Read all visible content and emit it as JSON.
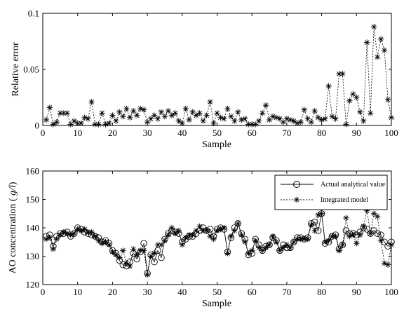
{
  "chart_data": [
    {
      "type": "line",
      "xlabel": "Sample",
      "ylabel": "Relative error",
      "xlim": [
        0,
        100
      ],
      "ylim": [
        0,
        0.1
      ],
      "xticks": [
        0,
        10,
        20,
        30,
        40,
        50,
        60,
        70,
        80,
        90,
        100
      ],
      "yticks": [
        0,
        0.05,
        0.1
      ],
      "ytick_labels": [
        "0",
        "0.05",
        "0.1"
      ],
      "grid": false,
      "series": [
        {
          "name": "",
          "marker": "star",
          "style": "dotted",
          "color": "#000000",
          "x": [
            1,
            2,
            3,
            4,
            5,
            6,
            7,
            8,
            9,
            10,
            11,
            12,
            13,
            14,
            15,
            16,
            17,
            18,
            19,
            20,
            21,
            22,
            23,
            24,
            25,
            26,
            27,
            28,
            29,
            30,
            31,
            32,
            33,
            34,
            35,
            36,
            37,
            38,
            39,
            40,
            41,
            42,
            43,
            44,
            45,
            46,
            47,
            48,
            49,
            50,
            51,
            52,
            53,
            54,
            55,
            56,
            57,
            58,
            59,
            60,
            61,
            62,
            63,
            64,
            65,
            66,
            67,
            68,
            69,
            70,
            71,
            72,
            73,
            74,
            75,
            76,
            77,
            78,
            79,
            80,
            81,
            82,
            83,
            84,
            85,
            86,
            87,
            88,
            89,
            90,
            91,
            92,
            93,
            94,
            95,
            96,
            97,
            98,
            99,
            100
          ],
          "y": [
            0.005,
            0.016,
            0.001,
            0.003,
            0.011,
            0.011,
            0.011,
            0.001,
            0.004,
            0.002,
            0.002,
            0.007,
            0.006,
            0.021,
            0.001,
            0.001,
            0.011,
            0.001,
            0.002,
            0.009,
            0.004,
            0.012,
            0.008,
            0.015,
            0.007,
            0.013,
            0.009,
            0.015,
            0.014,
            0.003,
            0.006,
            0.009,
            0.006,
            0.012,
            0.008,
            0.013,
            0.009,
            0.011,
            0.004,
            0.002,
            0.015,
            0.005,
            0.012,
            0.009,
            0.011,
            0.004,
            0.009,
            0.021,
            0.002,
            0.011,
            0.007,
            0.006,
            0.015,
            0.008,
            0.004,
            0.012,
            0.005,
            0.006,
            0.001,
            0.001,
            0.001,
            0.004,
            0.011,
            0.018,
            0.005,
            0.008,
            0.007,
            0.006,
            0.003,
            0.006,
            0.005,
            0.004,
            0.002,
            0.003,
            0.014,
            0.006,
            0.003,
            0.013,
            0.007,
            0.005,
            0.006,
            0.035,
            0.008,
            0.006,
            0.046,
            0.046,
            0.001,
            0.022,
            0.028,
            0.025,
            0.012,
            0.004,
            0.074,
            0.011,
            0.088,
            0.061,
            0.077,
            0.067,
            0.023,
            0.007
          ]
        }
      ]
    },
    {
      "type": "line",
      "xlabel": "Sample",
      "ylabel": "AO concentration (g/l)",
      "xlim": [
        0,
        100
      ],
      "ylim": [
        120,
        160
      ],
      "xticks": [
        0,
        10,
        20,
        30,
        40,
        50,
        60,
        70,
        80,
        90,
        100
      ],
      "yticks": [
        120,
        130,
        140,
        150,
        160
      ],
      "grid": false,
      "legend_position": "top-right",
      "series": [
        {
          "name": "Actual analytical value",
          "marker": "circle",
          "style": "solid",
          "color": "#000000",
          "x": [
            1,
            2,
            3,
            4,
            5,
            6,
            7,
            8,
            9,
            10,
            11,
            12,
            13,
            14,
            15,
            16,
            17,
            18,
            19,
            20,
            21,
            22,
            23,
            24,
            25,
            26,
            27,
            28,
            29,
            30,
            31,
            32,
            33,
            34,
            35,
            36,
            37,
            38,
            39,
            40,
            41,
            42,
            43,
            44,
            45,
            46,
            47,
            48,
            49,
            50,
            51,
            52,
            53,
            54,
            55,
            56,
            57,
            58,
            59,
            60,
            61,
            62,
            63,
            64,
            65,
            66,
            67,
            68,
            69,
            70,
            71,
            72,
            73,
            74,
            75,
            76,
            77,
            78,
            79,
            80,
            81,
            82,
            83,
            84,
            85,
            86,
            87,
            88,
            89,
            90,
            91,
            92,
            93,
            94,
            95,
            96,
            97,
            98,
            99,
            100
          ],
          "y": [
            137,
            137.5,
            133.5,
            137,
            138,
            138,
            138.5,
            137,
            138,
            140,
            139.5,
            138.5,
            138,
            137.5,
            137,
            136.5,
            135,
            135.5,
            134.5,
            132,
            131,
            128.5,
            127,
            126.5,
            128,
            131,
            129,
            131.5,
            134.5,
            124,
            130.5,
            128,
            132,
            129.5,
            136,
            138,
            139,
            138.5,
            138,
            135,
            136,
            137,
            137,
            138,
            139,
            140,
            139,
            139.5,
            137,
            139.5,
            140,
            139.5,
            131.5,
            136.5,
            140,
            141.5,
            138,
            136,
            130.5,
            131,
            136,
            134,
            132,
            133.5,
            134,
            136.5,
            135.5,
            132,
            134,
            133,
            133,
            135,
            136.5,
            136.5,
            136,
            136.5,
            141.5,
            142,
            139,
            145,
            134.5,
            135,
            137,
            137.5,
            132.5,
            134,
            139,
            138,
            138,
            137.5,
            138.5,
            140,
            139.5,
            138,
            139,
            138,
            137.5,
            135,
            133.5,
            135
          ]
        },
        {
          "name": "Integrated model",
          "marker": "star",
          "style": "dotted",
          "color": "#000000",
          "x": [
            1,
            2,
            3,
            4,
            5,
            6,
            7,
            8,
            9,
            10,
            11,
            12,
            13,
            14,
            15,
            16,
            17,
            18,
            19,
            20,
            21,
            22,
            23,
            24,
            25,
            26,
            27,
            28,
            29,
            30,
            31,
            32,
            33,
            34,
            35,
            36,
            37,
            38,
            39,
            40,
            41,
            42,
            43,
            44,
            45,
            46,
            47,
            48,
            49,
            50,
            51,
            52,
            53,
            54,
            55,
            56,
            57,
            58,
            59,
            60,
            61,
            62,
            63,
            64,
            65,
            66,
            67,
            68,
            69,
            70,
            71,
            72,
            73,
            74,
            75,
            76,
            77,
            78,
            79,
            80,
            81,
            82,
            83,
            84,
            85,
            86,
            87,
            88,
            89,
            90,
            91,
            92,
            93,
            94,
            95,
            96,
            97,
            98,
            99,
            100
          ],
          "y": [
            136,
            136.5,
            132.5,
            136,
            137.5,
            138.5,
            138,
            137.5,
            138,
            139.5,
            139,
            139.5,
            138.5,
            138.5,
            137,
            135.5,
            134.5,
            135,
            134,
            131.5,
            130.5,
            129.5,
            132,
            127.5,
            126.5,
            132.5,
            130.5,
            132,
            132,
            123.5,
            130,
            131,
            134,
            134,
            135.5,
            137.5,
            140,
            138,
            139,
            134,
            136.5,
            137.5,
            137.5,
            139,
            140.5,
            139,
            139,
            137,
            136,
            139,
            139.5,
            140,
            131,
            137,
            139,
            141.5,
            137.5,
            135,
            131,
            132,
            135.5,
            133,
            132,
            133,
            134,
            137,
            135,
            132,
            133,
            134,
            133,
            135,
            136,
            136,
            136,
            136,
            141,
            139,
            144.5,
            145,
            135,
            135.5,
            137,
            137,
            132,
            134,
            143.5,
            137,
            137.5,
            134.5,
            137.5,
            140.5,
            146,
            138,
            145,
            144,
            135.5,
            127.5,
            127,
            134
          ]
        }
      ]
    }
  ]
}
